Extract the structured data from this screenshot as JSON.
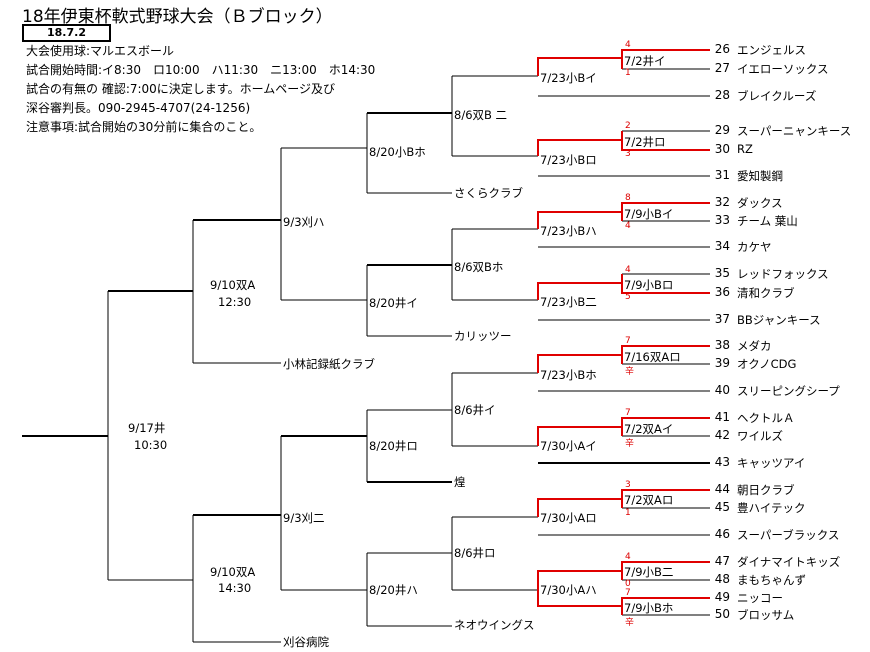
{
  "title": "18年伊東杯軟式野球大会（Ｂブロック）",
  "date_box": "18.7.2",
  "notes": [
    "大会使用球:マルエスボール",
    "試合開始時間:イ8:30　ロ10:00　ハ11:30　ニ13:00　ホ14:30",
    "試合の有無の 確認:7:00に決定します。ホームページ及び",
    "深谷審判長。090-2945-4707(24-1256)",
    "注意事項:試合開始の30分前に集合のこと。"
  ],
  "teams": [
    {
      "num": "26",
      "name": "エンジェルス"
    },
    {
      "num": "27",
      "name": "イエローソックス"
    },
    {
      "num": "28",
      "name": "ブレイクルーズ"
    },
    {
      "num": "29",
      "name": "スーパーニャンキース"
    },
    {
      "num": "30",
      "name": "RZ"
    },
    {
      "num": "31",
      "name": "愛知製鋼"
    },
    {
      "num": "32",
      "name": "ダックス"
    },
    {
      "num": "33",
      "name": "チーム 葉山"
    },
    {
      "num": "34",
      "name": "カケヤ"
    },
    {
      "num": "35",
      "name": "レッドフォックス"
    },
    {
      "num": "36",
      "name": "清和クラブ"
    },
    {
      "num": "37",
      "name": "BBジャンキース"
    },
    {
      "num": "38",
      "name": "メダカ"
    },
    {
      "num": "39",
      "name": "オクノCDG"
    },
    {
      "num": "40",
      "name": "スリーピングシープ"
    },
    {
      "num": "41",
      "name": "ヘクトルＡ"
    },
    {
      "num": "42",
      "name": "ワイルズ"
    },
    {
      "num": "43",
      "name": "キャッツアイ"
    },
    {
      "num": "44",
      "name": "朝日クラブ"
    },
    {
      "num": "45",
      "name": "豊ハイテック"
    },
    {
      "num": "46",
      "name": "スーパーブラックス"
    },
    {
      "num": "47",
      "name": "ダイナマイトキッズ"
    },
    {
      "num": "48",
      "name": "まもちゃんず"
    },
    {
      "num": "49",
      "name": "ニッコー"
    },
    {
      "num": "50",
      "name": "ブロッサム"
    }
  ],
  "seeded_teams": [
    "さくらクラブ",
    "カリッツー",
    "小林記録紙クラブ",
    "煌",
    "ネオウイングス",
    "刈谷病院"
  ],
  "r1_matches": [
    "7/2井イ",
    "7/2井ロ",
    "7/9小Bイ",
    "7/9小Bロ",
    "7/16双Aロ",
    "7/2双Aイ",
    "7/2双Aロ",
    "7/9小B二",
    "7/9小Bホ"
  ],
  "r2_matches": [
    "7/23小Bイ",
    "7/23小Bロ",
    "7/23小Bハ",
    "7/23小B二",
    "7/23小Bホ",
    "7/30小Aイ",
    "7/30小Aロ",
    "7/30小Aハ"
  ],
  "r3_matches": [
    "8/6双B 二",
    "8/6双Bホ",
    "8/6井イ",
    "8/6井ロ"
  ],
  "r4_matches": [
    "8/20小Bホ",
    "8/20井イ",
    "8/20井ロ",
    "8/20井ハ"
  ],
  "r5_matches": [
    "9/3刈ハ",
    "9/3刈二"
  ],
  "r6_matches": [
    {
      "date": "9/10双A",
      "time": "12:30"
    },
    {
      "date": "9/10双A",
      "time": "14:30"
    }
  ],
  "final": {
    "date": "9/17井",
    "time": "10:30"
  },
  "scores": [
    "4",
    "1",
    "2",
    "3",
    "8",
    "4",
    "4",
    "5",
    "7",
    "辛",
    "7",
    "辛",
    "3",
    "1",
    "4",
    "0",
    "7",
    "辛"
  ]
}
